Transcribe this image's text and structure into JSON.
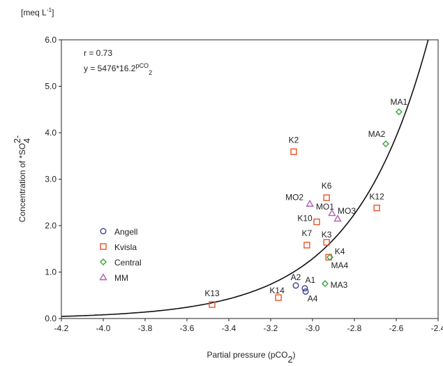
{
  "chart_data": {
    "type": "scatter",
    "units_label": [
      {
        "text": "[meq L"
      },
      {
        "text": "-1",
        "shift": "super"
      },
      {
        "text": "]"
      }
    ],
    "xlabel": [
      {
        "text": "Partial pressure (pCO"
      },
      {
        "text": "2",
        "shift": "sub"
      },
      {
        "text": ")"
      }
    ],
    "ylabel": [
      {
        "text": "Concentration of *SO"
      },
      {
        "text": "4",
        "shift": "sub"
      },
      {
        "text": "2-",
        "shift": "super"
      }
    ],
    "annotations": [
      [
        {
          "text": "r = 0.73"
        }
      ],
      [
        {
          "text": "y = 5476*16.2"
        },
        {
          "text": "pCO",
          "shift": "super"
        },
        {
          "text": "2",
          "shift": "sub"
        }
      ]
    ],
    "fit": {
      "type": "exponential",
      "coefficients": [
        5476,
        16.2
      ]
    },
    "xlim": [
      -4.2,
      -2.4
    ],
    "ylim": [
      0,
      6
    ],
    "xticks": [
      -4.2,
      {
        "value": -4,
        "label": "-4.0"
      },
      -3.8,
      -3.6,
      -3.4,
      -3.2,
      {
        "value": -3,
        "label": "-3.0"
      },
      -2.8,
      -2.6,
      -2.4
    ],
    "yticks": [
      {
        "value": 0,
        "label": "0.0"
      },
      {
        "value": 1,
        "label": "1.0"
      },
      {
        "value": 2,
        "label": "2.0"
      },
      {
        "value": 3,
        "label": "3.0"
      },
      {
        "value": 4,
        "label": "4.0"
      },
      {
        "value": 5,
        "label": "5.0"
      },
      {
        "value": 6,
        "label": "6.0"
      }
    ],
    "legend": "left",
    "series": [
      {
        "name": "Angell",
        "color": "#3c3c9c",
        "marker": "circle",
        "labels": [
          "A2",
          "A1",
          "A4"
        ],
        "x": [
          -3.08,
          -3.037,
          -3.033
        ],
        "values": [
          0.71,
          0.65,
          0.58
        ]
      },
      {
        "name": "Kvisla",
        "color": "#e8542a",
        "marker": "square",
        "labels": [
          "K13",
          "K14",
          "K2",
          "K6",
          "K10",
          "K7",
          "K3",
          "K12",
          "K4"
        ],
        "x": [
          -3.48,
          -3.163,
          -3.09,
          -2.933,
          -2.98,
          -3.027,
          -2.933,
          -2.693,
          -2.923
        ],
        "values": [
          0.3,
          0.45,
          3.59,
          2.6,
          2.08,
          1.58,
          1.64,
          2.38,
          1.32
        ]
      },
      {
        "name": "Central",
        "color": "#3aa03a",
        "marker": "diamond",
        "labels": [
          "MA1",
          "MA2",
          "MA4",
          "MA3"
        ],
        "x": [
          -2.587,
          -2.65,
          -2.917,
          -2.94
        ],
        "values": [
          4.45,
          3.76,
          1.32,
          0.75
        ]
      },
      {
        "name": "MM",
        "color": "#b060b0",
        "marker": "triangle",
        "labels": [
          "MO2",
          "MO1",
          "MO3"
        ],
        "x": [
          -3.013,
          -2.907,
          -2.88
        ],
        "values": [
          2.47,
          2.27,
          2.15
        ]
      }
    ]
  }
}
